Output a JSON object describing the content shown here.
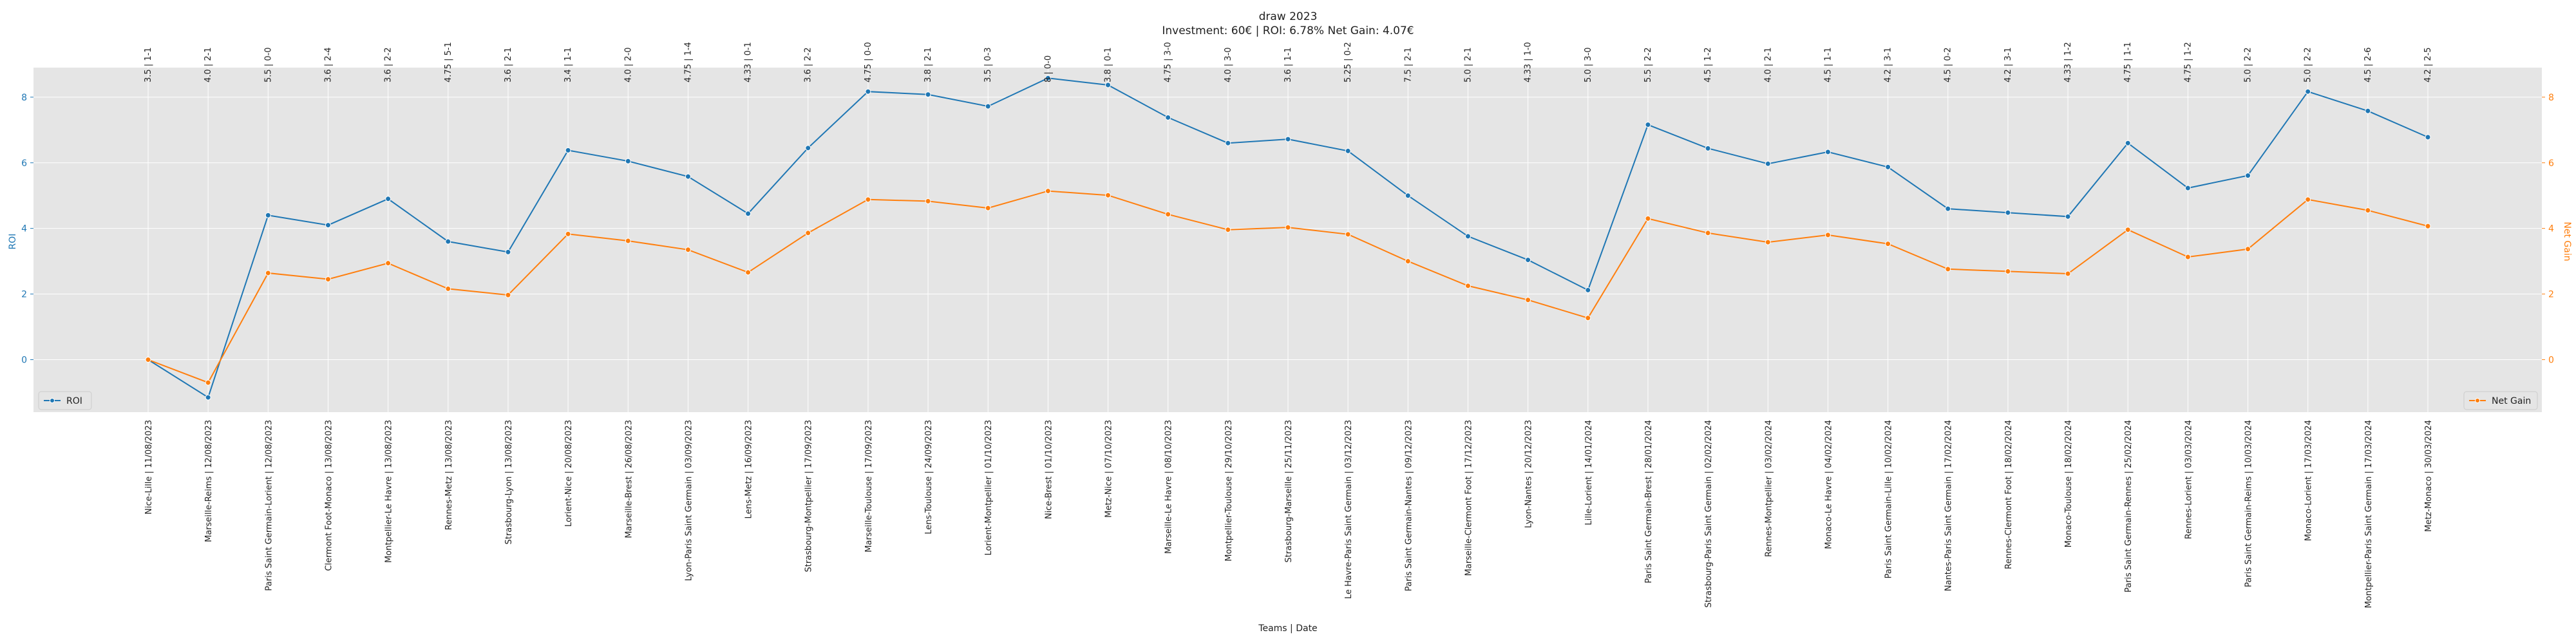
{
  "chart_data": {
    "type": "line",
    "title": "draw 2023",
    "subtitle": "Investment: 60€ | ROI: 6.78% Net Gain: 4.07€",
    "xlabel": "Teams | Date",
    "ylabel_left": "ROI",
    "ylabel_right": "Net Gain",
    "ylim_left": [
      -1.6,
      8.9
    ],
    "ylim_right": [
      -1.6,
      8.9
    ],
    "yticks_left": [
      "0",
      "2",
      "4",
      "6",
      "8"
    ],
    "yticks_right": [
      "0",
      "2",
      "4",
      "6",
      "8"
    ],
    "grid": true,
    "legend_left": "lower-left",
    "legend_right": "lower-right",
    "categories": [
      "Nice-Lille | 11/08/2023",
      "Marseille-Reims | 12/08/2023",
      "Paris Saint Germain-Lorient | 12/08/2023",
      "Clermont Foot-Monaco | 13/08/2023",
      "Montpellier-Le Havre | 13/08/2023",
      "Rennes-Metz | 13/08/2023",
      "Strasbourg-Lyon | 13/08/2023",
      "Lorient-Nice | 20/08/2023",
      "Marseille-Brest | 26/08/2023",
      "Lyon-Paris Saint Germain | 03/09/2023",
      "Lens-Metz | 16/09/2023",
      "Strasbourg-Montpellier | 17/09/2023",
      "Marseille-Toulouse | 17/09/2023",
      "Lens-Toulouse | 24/09/2023",
      "Lorient-Montpellier | 01/10/2023",
      "Nice-Brest | 01/10/2023",
      "Metz-Nice | 07/10/2023",
      "Marseille-Le Havre | 08/10/2023",
      "Montpellier-Toulouse | 29/10/2023",
      "Strasbourg-Marseille | 25/11/2023",
      "Le Havre-Paris Saint Germain | 03/12/2023",
      "Paris Saint Germain-Nantes | 09/12/2023",
      "Marseille-Clermont Foot | 17/12/2023",
      "Lyon-Nantes | 20/12/2023",
      "Lille-Lorient | 14/01/2024",
      "Paris Saint Germain-Brest | 28/01/2024",
      "Strasbourg-Paris Saint Germain | 02/02/2024",
      "Rennes-Montpellier | 03/02/2024",
      "Monaco-Le Havre | 04/02/2024",
      "Paris Saint Germain-Lille | 10/02/2024",
      "Nantes-Paris Saint Germain | 17/02/2024",
      "Rennes-Clermont Foot | 18/02/2024",
      "Monaco-Toulouse | 18/02/2024",
      "Paris Saint Germain-Rennes | 25/02/2024",
      "Rennes-Lorient | 03/03/2024",
      "Paris Saint Germain-Reims | 10/03/2024",
      "Monaco-Lorient | 17/03/2024",
      "Montpellier-Paris Saint Germain | 17/03/2024",
      "Metz-Monaco | 30/03/2024"
    ],
    "top_labels": [
      "3.5 | 1-1",
      "4.0 | 2-1",
      "5.5 | 0-0",
      "3.6 | 2-4",
      "3.6 | 2-2",
      "4.75 | 5-1",
      "3.6 | 2-1",
      "3.4 | 1-1",
      "4.0 | 2-0",
      "4.75 | 1-4",
      "4.33 | 0-1",
      "3.6 | 2-2",
      "4.75 | 0-0",
      "3.8 | 2-1",
      "3.5 | 0-3",
      "8 | 0-0",
      "3.8 | 0-1",
      "4.75 | 3-0",
      "4.0 | 3-0",
      "3.6 | 1-1",
      "5.25 | 0-2",
      "7.5 | 2-1",
      "5.0 | 2-1",
      "4.33 | 1-0",
      "5.0 | 3-0",
      "5.5 | 2-2",
      "4.5 | 1-2",
      "4.0 | 2-1",
      "4.5 | 1-1",
      "4.2 | 3-1",
      "4.5 | 0-2",
      "4.2 | 3-1",
      "4.33 | 1-2",
      "4.75 | 1-1",
      "4.75 | 1-2",
      "5.0 | 2-2",
      "5.0 | 2-2",
      "4.5 | 2-6",
      "4.2 | 2-5"
    ],
    "series": [
      {
        "name": "ROI",
        "axis": "left",
        "color": "#1f77b4",
        "values": [
          0.0,
          -1.15,
          4.4,
          4.1,
          4.9,
          3.6,
          3.28,
          6.38,
          6.05,
          5.58,
          4.45,
          6.45,
          8.17,
          8.08,
          7.72,
          8.58,
          8.37,
          7.38,
          6.6,
          6.72,
          6.36,
          5.0,
          3.76,
          3.04,
          2.12,
          7.16,
          6.44,
          5.97,
          6.33,
          5.87,
          4.6,
          4.48,
          4.36,
          6.6,
          5.23,
          5.61,
          8.17,
          7.58,
          6.78
        ]
      },
      {
        "name": "Net Gain",
        "axis": "right",
        "color": "#ff7f0e",
        "values": [
          0.0,
          -0.7,
          2.64,
          2.45,
          2.94,
          2.16,
          1.97,
          3.83,
          3.62,
          3.35,
          2.66,
          3.86,
          4.88,
          4.83,
          4.62,
          5.14,
          5.01,
          4.43,
          3.96,
          4.03,
          3.82,
          3.0,
          2.25,
          1.82,
          1.27,
          4.3,
          3.86,
          3.58,
          3.8,
          3.53,
          2.76,
          2.69,
          2.62,
          3.96,
          3.13,
          3.37,
          4.88,
          4.55,
          4.07
        ]
      }
    ]
  }
}
